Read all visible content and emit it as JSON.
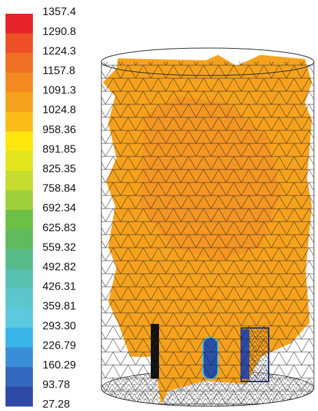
{
  "colorbar": {
    "labels": [
      "1357.4",
      "1290.8",
      "1224.3",
      "1157.8",
      "1091.3",
      "1024.8",
      "958.36",
      "891.85",
      "825.35",
      "758.84",
      "692.34",
      "625.83",
      "559.32",
      "492.82",
      "426.31",
      "359.81",
      "293.30",
      "226.79",
      "160.29",
      "93.78",
      "27.28"
    ]
  }
}
